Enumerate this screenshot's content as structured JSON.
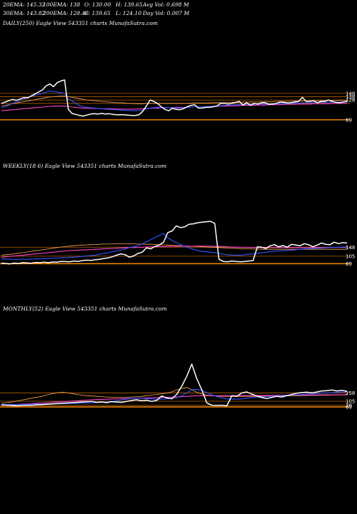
{
  "header": {
    "row1": [
      {
        "text": "20EMA: 145.32"
      },
      {
        "text": "100EMA: 138"
      },
      {
        "text": "O: 130.00"
      },
      {
        "text": "H: 139.65"
      },
      {
        "text": "Avg Vol: 0.698  M"
      }
    ],
    "row2": [
      {
        "text": "30EMA: 143.82"
      },
      {
        "text": "200EMA: 128.46"
      },
      {
        "text": "C: 139.65"
      },
      {
        "text": "L: 124.10"
      },
      {
        "text": "Day Vol: 0.007 M"
      }
    ]
  },
  "chart_data": [
    {
      "type": "line",
      "title": "DAILY(250) Eagle   View  543351 charts MunafaSutra.com",
      "y_tick_labels": [
        "148",
        "138",
        "128",
        "69"
      ],
      "colors": {
        "price": "#ffffff",
        "ema_fast": "#3355ff",
        "ema_mid": "#ff44cc",
        "ema_slow": "#ffaa55",
        "hline": "#ff8c00"
      },
      "price": [
        118,
        122,
        126,
        130,
        127,
        131,
        135,
        134,
        140,
        146,
        152,
        158,
        170,
        176,
        168,
        180,
        185,
        188,
        100,
        88,
        85,
        82,
        80,
        83,
        86,
        87,
        86,
        88,
        86,
        87,
        85,
        84,
        84,
        84,
        83,
        82,
        82,
        84,
        94,
        110,
        128,
        124,
        118,
        108,
        100,
        96,
        103,
        100,
        99,
        102,
        108,
        112,
        114,
        104,
        104,
        106,
        106,
        108,
        110,
        118,
        118,
        116,
        118,
        121,
        124,
        113,
        120,
        112,
        118,
        116,
        120,
        120,
        115,
        116,
        118,
        122,
        121,
        119,
        120,
        122,
        124,
        136,
        124,
        124,
        126,
        120,
        124,
        124,
        128,
        124,
        121,
        120,
        122,
        124
      ],
      "ema_fast": [
        105,
        108,
        112,
        118,
        122,
        126,
        130,
        136,
        140,
        142,
        145,
        148,
        152,
        155,
        154,
        152,
        150,
        148,
        132,
        125,
        118,
        112,
        108,
        106,
        105,
        104,
        103,
        102,
        101,
        100,
        100,
        99,
        98,
        97,
        97,
        96,
        96,
        97,
        98,
        102,
        104,
        105,
        106,
        106,
        106,
        105,
        104,
        104,
        104,
        105,
        106,
        107,
        108,
        108,
        108,
        108,
        109,
        109,
        110,
        111,
        112,
        112,
        113,
        114,
        114,
        114,
        115,
        115,
        115,
        116,
        116,
        116,
        116,
        117,
        117,
        117,
        118,
        118,
        118,
        119,
        119,
        120,
        120,
        120,
        121,
        121,
        121,
        121,
        122,
        122,
        122,
        122,
        122,
        122
      ],
      "ema_mid": [
        96,
        97,
        98,
        99,
        100,
        101,
        102,
        103,
        104,
        105,
        106,
        107,
        108,
        109,
        110,
        110,
        110,
        110,
        109,
        107,
        106,
        105,
        104,
        104,
        103,
        103,
        103,
        102,
        102,
        102,
        102,
        101,
        101,
        101,
        101,
        101,
        101,
        102,
        102,
        103,
        103,
        104,
        104,
        105,
        105,
        105,
        105,
        106,
        106,
        106,
        107,
        107,
        108,
        108,
        108,
        108,
        109,
        109,
        109,
        110,
        110,
        110,
        111,
        111,
        111,
        112,
        112,
        112,
        112,
        113,
        113,
        113,
        114,
        114,
        114,
        114,
        115,
        115,
        115,
        115,
        116,
        116,
        116,
        116,
        117,
        117,
        117,
        117,
        117,
        118,
        118,
        118,
        118,
        118
      ],
      "ema_slow": [
        110,
        112,
        114,
        117,
        119,
        121,
        123,
        125,
        127,
        129,
        131,
        133,
        135,
        137,
        138,
        139,
        140,
        140,
        138,
        136,
        134,
        132,
        130,
        128,
        127,
        126,
        125,
        124,
        123,
        122,
        121,
        120,
        120,
        119,
        118,
        118,
        117,
        117,
        117,
        118,
        118,
        118,
        118,
        118,
        118,
        118,
        118,
        118,
        118,
        118,
        118,
        119,
        119,
        119,
        119,
        119,
        119,
        120,
        120,
        120,
        120,
        121,
        121,
        121,
        121,
        122,
        122,
        122,
        122,
        122,
        123,
        123,
        123,
        123,
        124,
        124,
        124,
        124,
        124,
        125,
        125,
        125,
        125,
        126,
        126,
        126,
        126,
        126,
        127,
        127,
        127,
        127,
        127,
        127
      ],
      "hlines": [
        148,
        138,
        128,
        118,
        69
      ]
    },
    {
      "type": "line",
      "title": "WEEKLY(18          6) Eagle   View  543351 charts MunafaSutra.com",
      "y_tick_labels": [
        "148",
        "105",
        "69"
      ],
      "colors": {
        "price": "#ffffff",
        "ema_fast": "#3355ff",
        "ema_mid": "#ff44cc",
        "ema_slow": "#ffaa55",
        "hline": "#ff8c00"
      },
      "price": [
        72,
        70,
        68,
        72,
        70,
        74,
        73,
        71,
        75,
        74,
        76,
        74,
        77,
        76,
        80,
        79,
        78,
        82,
        80,
        84,
        86,
        85,
        88,
        90,
        94,
        97,
        102,
        110,
        116,
        112,
        100,
        106,
        118,
        124,
        145,
        140,
        152,
        158,
        172,
        218,
        226,
        250,
        242,
        246,
        258,
        260,
        265,
        268,
        270,
        272,
        262,
        90,
        80,
        78,
        82,
        80,
        78,
        80,
        82,
        84,
        150,
        148,
        142,
        155,
        160,
        150,
        156,
        148,
        162,
        158,
        155,
        165,
        160,
        150,
        158,
        168,
        162,
        160,
        172,
        165,
        170,
        168
      ],
      "ema_fast": [
        92,
        91,
        90,
        90,
        90,
        90,
        91,
        91,
        92,
        92,
        93,
        94,
        95,
        96,
        97,
        98,
        99,
        100,
        102,
        104,
        106,
        108,
        110,
        114,
        118,
        122,
        126,
        130,
        134,
        140,
        146,
        150,
        156,
        164,
        174,
        184,
        194,
        204,
        214,
        192,
        180,
        170,
        160,
        152,
        144,
        138,
        132,
        128,
        126,
        124,
        122,
        118,
        114,
        112,
        110,
        110,
        110,
        112,
        114,
        116,
        118,
        122,
        124,
        126,
        128,
        130,
        131,
        132,
        134,
        136,
        138,
        140,
        141,
        142,
        143,
        144,
        145,
        146,
        147,
        148,
        149,
        150
      ],
      "ema_mid": [
        100,
        102,
        104,
        106,
        108,
        110,
        112,
        114,
        116,
        118,
        120,
        122,
        124,
        126,
        128,
        130,
        132,
        133,
        134,
        135,
        136,
        137,
        138,
        139,
        140,
        141,
        142,
        143,
        144,
        145,
        146,
        146,
        147,
        148,
        149,
        150,
        150,
        151,
        151,
        152,
        152,
        152,
        153,
        153,
        153,
        153,
        153,
        153,
        153,
        153,
        152,
        152,
        151,
        150,
        149,
        148,
        148,
        147,
        147,
        146,
        146,
        146,
        146,
        146,
        146,
        146,
        146,
        146,
        146,
        146,
        146,
        146,
        146,
        146,
        146,
        146,
        146,
        147,
        147,
        147,
        147,
        147
      ],
      "ema_slow": [
        110,
        112,
        114,
        116,
        119,
        122,
        125,
        128,
        131,
        134,
        137,
        140,
        143,
        146,
        149,
        151,
        153,
        155,
        157,
        158,
        159,
        160,
        161,
        162,
        163,
        163,
        164,
        164,
        164,
        164,
        164,
        164,
        163,
        163,
        162,
        162,
        161,
        160,
        159,
        158,
        157,
        156,
        155,
        154,
        153,
        152,
        151,
        150,
        149,
        148,
        147,
        146,
        145,
        144,
        143,
        142,
        141,
        140,
        140,
        139,
        139,
        138,
        138,
        138,
        138,
        138,
        138,
        138,
        138,
        138,
        138,
        138,
        138,
        138,
        138,
        138,
        138,
        138,
        138,
        138,
        138,
        138
      ],
      "hlines": [
        148,
        105,
        69
      ]
    },
    {
      "type": "line",
      "title": "MONTHLY(52) Eagle   View  543351 charts MunafaSutra.com",
      "y_tick_labels": [
        "158",
        "105",
        "79",
        "69"
      ],
      "colors": {
        "price": "#ffffff",
        "ema_fast": "#3355ff",
        "ema_mid": "#ff44cc",
        "ema_slow": "#ffaa55",
        "hline": "#ff8c00"
      },
      "price": [
        82,
        80,
        78,
        76,
        78,
        80,
        79,
        82,
        84,
        86,
        88,
        90,
        92,
        94,
        96,
        98,
        100,
        102,
        104,
        98,
        100,
        96,
        102,
        100,
        98,
        104,
        110,
        114,
        108,
        112,
        104,
        110,
        138,
        126,
        120,
        148,
        200,
        262,
        340,
        248,
        178,
        95,
        80,
        78,
        80,
        76,
        140,
        136,
        158,
        164,
        150,
        138,
        128,
        122,
        130,
        136,
        132,
        140,
        148,
        156,
        160,
        162,
        158,
        164,
        170,
        172,
        176,
        170,
        174,
        168
      ],
      "ema_fast": [
        84,
        84,
        84,
        85,
        85,
        86,
        86,
        87,
        87,
        88,
        88,
        89,
        90,
        90,
        91,
        92,
        93,
        94,
        95,
        96,
        98,
        100,
        104,
        108,
        114,
        118,
        122,
        124,
        124,
        122,
        120,
        118,
        118,
        120,
        124,
        128,
        140,
        158,
        178,
        180,
        174,
        160,
        146,
        134,
        126,
        120,
        118,
        118,
        120,
        124,
        128,
        130,
        132,
        134,
        136,
        138,
        140,
        142,
        144,
        146,
        148,
        150,
        152,
        154,
        156,
        158,
        160,
        162,
        163,
        164
      ],
      "ema_mid": [
        78,
        80,
        82,
        84,
        86,
        88,
        90,
        92,
        94,
        96,
        98,
        100,
        102,
        104,
        106,
        108,
        110,
        112,
        114,
        116,
        117,
        118,
        119,
        120,
        121,
        122,
        123,
        124,
        125,
        126,
        127,
        128,
        129,
        130,
        131,
        132,
        134,
        136,
        138,
        139,
        140,
        140,
        140,
        140,
        140,
        140,
        140,
        140,
        140,
        140,
        141,
        141,
        141,
        142,
        142,
        142,
        143,
        143,
        143,
        144,
        144,
        144,
        145,
        145,
        145,
        146,
        146,
        146,
        146,
        147
      ],
      "ema_slow": [
        92,
        96,
        100,
        106,
        112,
        118,
        124,
        130,
        136,
        144,
        152,
        158,
        162,
        160,
        154,
        148,
        144,
        140,
        138,
        136,
        134,
        132,
        130,
        130,
        130,
        130,
        132,
        134,
        136,
        140,
        144,
        148,
        152,
        156,
        164,
        176,
        186,
        192,
        178,
        162,
        150,
        144,
        140,
        138,
        136,
        136,
        136,
        136,
        136,
        136,
        136,
        136,
        136,
        137,
        137,
        138,
        138,
        139,
        140,
        140,
        141,
        141,
        142,
        142,
        143,
        143,
        144,
        144,
        145,
        145
      ],
      "hlines": [
        158,
        105,
        79,
        69
      ]
    }
  ]
}
